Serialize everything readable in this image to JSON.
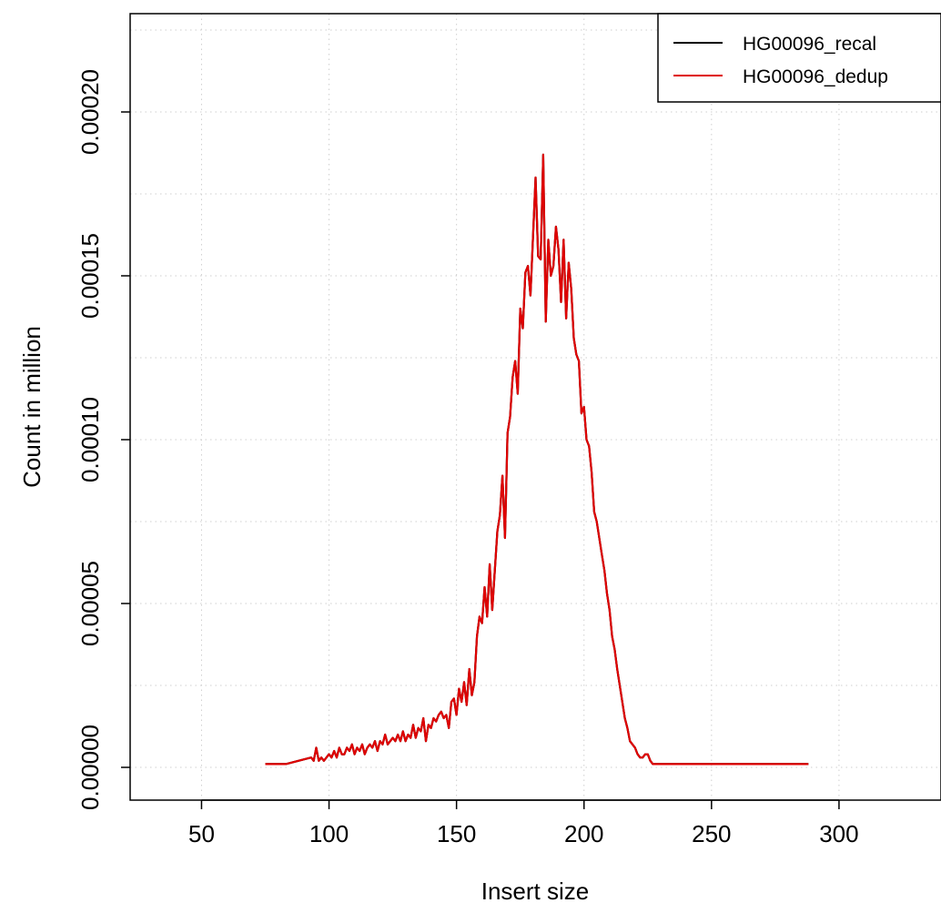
{
  "chart_data": {
    "type": "line",
    "title": "",
    "xlabel": "Insert size",
    "ylabel": "Count in million",
    "xlim": [
      22,
      340
    ],
    "ylim": [
      -1e-05,
      0.00023
    ],
    "xticks": [
      50,
      100,
      150,
      200,
      250,
      300
    ],
    "yticks": [
      0.0,
      5e-05,
      0.0001,
      0.00015,
      0.0002
    ],
    "xtick_labels": [
      "50",
      "100",
      "150",
      "200",
      "250",
      "300"
    ],
    "ytick_labels": [
      "0.00000",
      "0.00005",
      "0.00010",
      "0.00015",
      "0.00020"
    ],
    "grid": true,
    "legend_position": "top-right",
    "series": [
      {
        "name": "HG00096_recal",
        "color": "#000000",
        "x": [
          75,
          83,
          93,
          94,
          95,
          96,
          97,
          98,
          99,
          100,
          101,
          102,
          103,
          104,
          105,
          106,
          107,
          108,
          109,
          110,
          111,
          112,
          113,
          114,
          115,
          116,
          117,
          118,
          119,
          120,
          121,
          122,
          123,
          124,
          125,
          126,
          127,
          128,
          129,
          130,
          131,
          132,
          133,
          134,
          135,
          136,
          137,
          138,
          139,
          140,
          141,
          142,
          143,
          144,
          145,
          146,
          147,
          148,
          149,
          150,
          151,
          152,
          153,
          154,
          155,
          156,
          157,
          158,
          159,
          160,
          161,
          162,
          163,
          164,
          165,
          166,
          167,
          168,
          169,
          170,
          171,
          172,
          173,
          174,
          175,
          176,
          177,
          178,
          179,
          180,
          181,
          182,
          183,
          184,
          185,
          186,
          187,
          188,
          189,
          190,
          191,
          192,
          193,
          194,
          195,
          196,
          197,
          198,
          199,
          200,
          201,
          202,
          203,
          204,
          205,
          206,
          207,
          208,
          209,
          210,
          211,
          212,
          213,
          214,
          215,
          216,
          217,
          218,
          219,
          220,
          221,
          222,
          223,
          224,
          225,
          226,
          227,
          228,
          229,
          230,
          231,
          232,
          233,
          234,
          250,
          288
        ],
        "values": [
          1e-06,
          1e-06,
          3e-06,
          2e-06,
          6e-06,
          2e-06,
          3e-06,
          2e-06,
          3e-06,
          4e-06,
          3e-06,
          5e-06,
          3e-06,
          6e-06,
          4e-06,
          4e-06,
          6e-06,
          5e-06,
          7e-06,
          4e-06,
          6e-06,
          5e-06,
          7e-06,
          4e-06,
          6e-06,
          7e-06,
          6e-06,
          8e-06,
          5e-06,
          8e-06,
          7e-06,
          1e-05,
          7e-06,
          8e-06,
          9e-06,
          8e-06,
          1e-05,
          8e-06,
          1.1e-05,
          8e-06,
          1e-05,
          9e-06,
          1.3e-05,
          9e-06,
          1.2e-05,
          1.1e-05,
          1.5e-05,
          8e-06,
          1.3e-05,
          1.2e-05,
          1.5e-05,
          1.4e-05,
          1.6e-05,
          1.7e-05,
          1.5e-05,
          1.6e-05,
          1.2e-05,
          2e-05,
          2.1e-05,
          1.6e-05,
          2.4e-05,
          2e-05,
          2.6e-05,
          1.9e-05,
          3e-05,
          2.2e-05,
          2.6e-05,
          4e-05,
          4.6e-05,
          4.4e-05,
          5.5e-05,
          4.6e-05,
          6.2e-05,
          4.8e-05,
          6e-05,
          7.2e-05,
          7.7e-05,
          8.9e-05,
          7e-05,
          0.000102,
          0.000107,
          0.000119,
          0.000124,
          0.000114,
          0.00014,
          0.000134,
          0.000151,
          0.000153,
          0.000144,
          0.000162,
          0.00018,
          0.000156,
          0.000155,
          0.000187,
          0.000136,
          0.000161,
          0.00015,
          0.000153,
          0.000165,
          0.000158,
          0.000142,
          0.000161,
          0.000137,
          0.000154,
          0.000146,
          0.000131,
          0.000126,
          0.000124,
          0.000108,
          0.00011,
          0.0001,
          9.8e-05,
          9e-05,
          7.8e-05,
          7.5e-05,
          7e-05,
          6.5e-05,
          6e-05,
          5.3e-05,
          4.8e-05,
          4e-05,
          3.6e-05,
          3e-05,
          2.5e-05,
          2e-05,
          1.5e-05,
          1.2e-05,
          8e-06,
          7e-06,
          6e-06,
          4e-06,
          3e-06,
          3e-06,
          4e-06,
          4e-06,
          2e-06,
          1e-06,
          1e-06,
          1e-06,
          1e-06,
          1e-06,
          1e-06,
          1e-06,
          1e-06,
          1e-06,
          1e-06
        ]
      },
      {
        "name": "HG00096_dedup",
        "color": "#df0000",
        "x": [
          75,
          83,
          93,
          94,
          95,
          96,
          97,
          98,
          99,
          100,
          101,
          102,
          103,
          104,
          105,
          106,
          107,
          108,
          109,
          110,
          111,
          112,
          113,
          114,
          115,
          116,
          117,
          118,
          119,
          120,
          121,
          122,
          123,
          124,
          125,
          126,
          127,
          128,
          129,
          130,
          131,
          132,
          133,
          134,
          135,
          136,
          137,
          138,
          139,
          140,
          141,
          142,
          143,
          144,
          145,
          146,
          147,
          148,
          149,
          150,
          151,
          152,
          153,
          154,
          155,
          156,
          157,
          158,
          159,
          160,
          161,
          162,
          163,
          164,
          165,
          166,
          167,
          168,
          169,
          170,
          171,
          172,
          173,
          174,
          175,
          176,
          177,
          178,
          179,
          180,
          181,
          182,
          183,
          184,
          185,
          186,
          187,
          188,
          189,
          190,
          191,
          192,
          193,
          194,
          195,
          196,
          197,
          198,
          199,
          200,
          201,
          202,
          203,
          204,
          205,
          206,
          207,
          208,
          209,
          210,
          211,
          212,
          213,
          214,
          215,
          216,
          217,
          218,
          219,
          220,
          221,
          222,
          223,
          224,
          225,
          226,
          227,
          228,
          229,
          230,
          231,
          232,
          233,
          234,
          250,
          288
        ],
        "values": [
          1e-06,
          1e-06,
          3e-06,
          2e-06,
          6e-06,
          2e-06,
          3e-06,
          2e-06,
          3e-06,
          4e-06,
          3e-06,
          5e-06,
          3e-06,
          6e-06,
          4e-06,
          4e-06,
          6e-06,
          5e-06,
          7e-06,
          4e-06,
          6e-06,
          5e-06,
          7e-06,
          4e-06,
          6e-06,
          7e-06,
          6e-06,
          8e-06,
          5e-06,
          8e-06,
          7e-06,
          1e-05,
          7e-06,
          8e-06,
          9e-06,
          8e-06,
          1e-05,
          8e-06,
          1.1e-05,
          8e-06,
          1e-05,
          9e-06,
          1.3e-05,
          9e-06,
          1.2e-05,
          1.1e-05,
          1.5e-05,
          8e-06,
          1.3e-05,
          1.2e-05,
          1.5e-05,
          1.4e-05,
          1.6e-05,
          1.7e-05,
          1.5e-05,
          1.6e-05,
          1.2e-05,
          2e-05,
          2.1e-05,
          1.6e-05,
          2.4e-05,
          2e-05,
          2.6e-05,
          1.9e-05,
          3e-05,
          2.2e-05,
          2.6e-05,
          4e-05,
          4.6e-05,
          4.4e-05,
          5.5e-05,
          4.6e-05,
          6.2e-05,
          4.8e-05,
          6e-05,
          7.2e-05,
          7.7e-05,
          8.9e-05,
          7e-05,
          0.000102,
          0.000107,
          0.000119,
          0.000124,
          0.000114,
          0.00014,
          0.000134,
          0.000151,
          0.000153,
          0.000144,
          0.000162,
          0.00018,
          0.000156,
          0.000155,
          0.000187,
          0.000136,
          0.000161,
          0.00015,
          0.000153,
          0.000165,
          0.000158,
          0.000142,
          0.000161,
          0.000137,
          0.000154,
          0.000146,
          0.000131,
          0.000126,
          0.000124,
          0.000108,
          0.00011,
          0.0001,
          9.8e-05,
          9e-05,
          7.8e-05,
          7.5e-05,
          7e-05,
          6.5e-05,
          6e-05,
          5.3e-05,
          4.8e-05,
          4e-05,
          3.6e-05,
          3e-05,
          2.5e-05,
          2e-05,
          1.5e-05,
          1.2e-05,
          8e-06,
          7e-06,
          6e-06,
          4e-06,
          3e-06,
          3e-06,
          4e-06,
          4e-06,
          2e-06,
          1e-06,
          1e-06,
          1e-06,
          1e-06,
          1e-06,
          1e-06,
          1e-06,
          1e-06,
          1e-06,
          1e-06
        ]
      }
    ]
  }
}
